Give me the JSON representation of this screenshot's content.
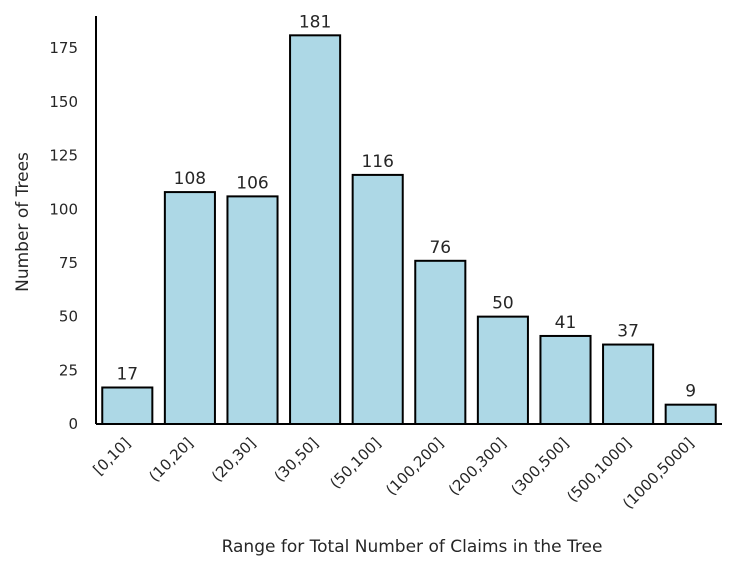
{
  "chart_data": {
    "type": "bar",
    "title": "",
    "xlabel": "Range for Total Number of Claims in the Tree",
    "ylabel": "Number of Trees",
    "categories": [
      "[0,10]",
      "(10,20]",
      "(20,30]",
      "(30,50]",
      "(50,100]",
      "(100,200]",
      "(200,300]",
      "(300,500]",
      "(500,1000]",
      "(1000,5000]"
    ],
    "values": [
      17,
      108,
      106,
      181,
      116,
      76,
      50,
      41,
      37,
      9
    ],
    "data_labels": [
      "17",
      "108",
      "106",
      "181",
      "116",
      "76",
      "50",
      "41",
      "37",
      "9"
    ],
    "yticks": [
      0,
      25,
      50,
      75,
      100,
      125,
      150,
      175
    ],
    "ylim": [
      0,
      190
    ],
    "grid": false,
    "bar_color": "#add8e6",
    "edge_color": "#000000"
  }
}
